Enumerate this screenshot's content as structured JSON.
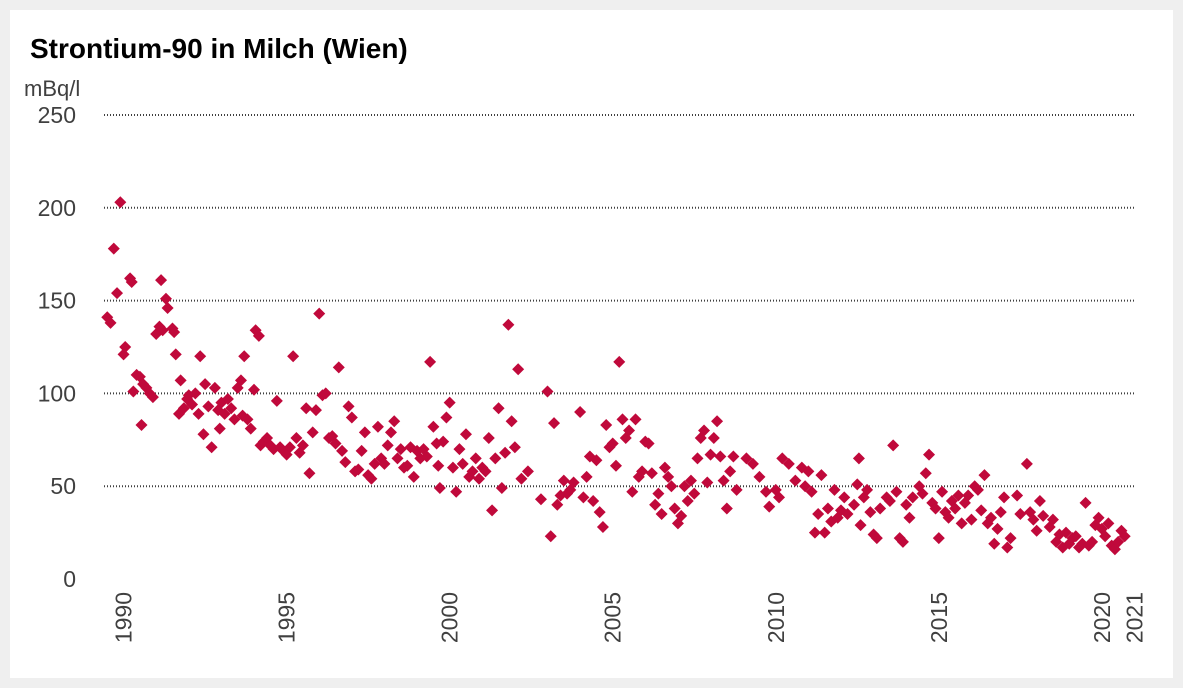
{
  "chart_data": {
    "type": "scatter",
    "title": "Strontium-90 in Milch (Wien)",
    "y_label": "mBq/l",
    "color": "#c0093b",
    "grid": true,
    "xlim": [
      1989.4,
      2021.2
    ],
    "xticks": [
      1990,
      1995,
      2000,
      2005,
      2010,
      2015,
      2020,
      2021
    ],
    "ylim": [
      0,
      250
    ],
    "yticks": [
      0,
      50,
      100,
      150,
      200,
      250
    ],
    "x": [
      1989.5,
      1989.6,
      1989.7,
      1989.8,
      1989.9,
      1990.0,
      1990.05,
      1990.2,
      1990.25,
      1990.3,
      1990.4,
      1990.5,
      1990.55,
      1990.6,
      1990.7,
      1990.8,
      1990.9,
      1991.0,
      1991.1,
      1991.15,
      1991.2,
      1991.3,
      1991.35,
      1991.5,
      1991.55,
      1991.6,
      1991.7,
      1991.75,
      1991.85,
      1991.95,
      1992.0,
      1992.1,
      1992.2,
      1992.3,
      1992.35,
      1992.45,
      1992.5,
      1992.6,
      1992.7,
      1992.8,
      1992.9,
      1992.95,
      1993.0,
      1993.1,
      1993.2,
      1993.3,
      1993.4,
      1993.5,
      1993.6,
      1993.65,
      1993.7,
      1993.8,
      1993.9,
      1994.0,
      1994.05,
      1994.15,
      1994.2,
      1994.3,
      1994.4,
      1994.5,
      1994.6,
      1994.7,
      1994.8,
      1994.9,
      1995.0,
      1995.1,
      1995.2,
      1995.3,
      1995.4,
      1995.5,
      1995.6,
      1995.7,
      1995.8,
      1995.9,
      1996.0,
      1996.1,
      1996.2,
      1996.3,
      1996.4,
      1996.5,
      1996.6,
      1996.7,
      1996.8,
      1996.9,
      1997.0,
      1997.1,
      1997.2,
      1997.3,
      1997.4,
      1997.5,
      1997.6,
      1997.7,
      1997.8,
      1997.9,
      1998.0,
      1998.1,
      1998.2,
      1998.3,
      1998.4,
      1998.5,
      1998.6,
      1998.7,
      1998.8,
      1998.9,
      1999.0,
      1999.1,
      1999.2,
      1999.3,
      1999.4,
      1999.5,
      1999.6,
      1999.65,
      1999.7,
      1999.8,
      1999.9,
      2000.0,
      2000.1,
      2000.2,
      2000.3,
      2000.4,
      2000.5,
      2000.6,
      2000.7,
      2000.8,
      2000.9,
      2001.0,
      2001.1,
      2001.2,
      2001.3,
      2001.4,
      2001.5,
      2001.6,
      2001.7,
      2001.8,
      2001.9,
      2002.0,
      2002.1,
      2002.2,
      2002.4,
      2002.8,
      2003.0,
      2003.1,
      2003.2,
      2003.3,
      2003.4,
      2003.5,
      2003.6,
      2003.7,
      2003.8,
      2004.0,
      2004.1,
      2004.2,
      2004.3,
      2004.4,
      2004.5,
      2004.6,
      2004.7,
      2004.8,
      2004.9,
      2005.0,
      2005.1,
      2005.2,
      2005.3,
      2005.4,
      2005.5,
      2005.6,
      2005.7,
      2005.8,
      2005.9,
      2006.0,
      2006.1,
      2006.2,
      2006.3,
      2006.4,
      2006.5,
      2006.6,
      2006.7,
      2006.8,
      2006.9,
      2007.0,
      2007.1,
      2007.2,
      2007.3,
      2007.4,
      2007.5,
      2007.6,
      2007.7,
      2007.8,
      2007.9,
      2008.0,
      2008.1,
      2008.2,
      2008.3,
      2008.4,
      2008.5,
      2008.6,
      2008.7,
      2008.8,
      2009.1,
      2009.3,
      2009.5,
      2009.7,
      2009.8,
      2010.0,
      2010.1,
      2010.2,
      2010.4,
      2010.6,
      2010.8,
      2010.9,
      2011.0,
      2011.1,
      2011.2,
      2011.3,
      2011.4,
      2011.5,
      2011.6,
      2011.7,
      2011.8,
      2011.9,
      2012.0,
      2012.1,
      2012.2,
      2012.4,
      2012.5,
      2012.55,
      2012.6,
      2012.7,
      2012.8,
      2012.9,
      2013.0,
      2013.1,
      2013.2,
      2013.4,
      2013.5,
      2013.6,
      2013.7,
      2013.8,
      2013.9,
      2014.0,
      2014.1,
      2014.2,
      2014.4,
      2014.5,
      2014.6,
      2014.7,
      2014.8,
      2014.9,
      2015.0,
      2015.1,
      2015.2,
      2015.3,
      2015.4,
      2015.5,
      2015.6,
      2015.7,
      2015.8,
      2015.9,
      2016.0,
      2016.1,
      2016.2,
      2016.3,
      2016.4,
      2016.5,
      2016.6,
      2016.7,
      2016.8,
      2016.9,
      2017.0,
      2017.1,
      2017.2,
      2017.4,
      2017.5,
      2017.7,
      2017.8,
      2017.9,
      2018.0,
      2018.1,
      2018.2,
      2018.4,
      2018.5,
      2018.6,
      2018.7,
      2018.8,
      2018.9,
      2019.0,
      2019.1,
      2019.2,
      2019.3,
      2019.4,
      2019.5,
      2019.6,
      2019.7,
      2019.8,
      2019.9,
      2020.0,
      2020.1,
      2020.2,
      2020.3,
      2020.4,
      2020.5,
      2020.6,
      2020.7
    ],
    "values": [
      141,
      138,
      178,
      154,
      203,
      121,
      125,
      162,
      160,
      101,
      110,
      109,
      83,
      105,
      103,
      100,
      98,
      132,
      136,
      161,
      134,
      151,
      146,
      135,
      133,
      121,
      89,
      107,
      92,
      97,
      99,
      94,
      100,
      89,
      120,
      78,
      105,
      93,
      71,
      103,
      91,
      81,
      95,
      89,
      97,
      92,
      86,
      103,
      107,
      88,
      120,
      86,
      81,
      102,
      134,
      131,
      72,
      74,
      76,
      72,
      70,
      96,
      71,
      69,
      67,
      71,
      120,
      76,
      68,
      72,
      92,
      57,
      79,
      91,
      143,
      99,
      100,
      76,
      77,
      73,
      114,
      69,
      63,
      93,
      87,
      58,
      59,
      69,
      79,
      56,
      54,
      62,
      82,
      65,
      62,
      72,
      79,
      85,
      65,
      70,
      60,
      61,
      71,
      55,
      69,
      65,
      70,
      66,
      117,
      82,
      73,
      61,
      49,
      74,
      87,
      95,
      60,
      47,
      70,
      62,
      78,
      55,
      58,
      65,
      54,
      60,
      58,
      76,
      37,
      65,
      92,
      49,
      68,
      137,
      85,
      71,
      113,
      54,
      58,
      43,
      101,
      23,
      84,
      40,
      45,
      53,
      46,
      48,
      52,
      90,
      44,
      55,
      66,
      42,
      64,
      36,
      28,
      83,
      71,
      73,
      61,
      117,
      86,
      76,
      80,
      47,
      86,
      55,
      58,
      74,
      73,
      57,
      40,
      46,
      35,
      60,
      55,
      50,
      38,
      30,
      34,
      50,
      42,
      53,
      46,
      65,
      76,
      80,
      52,
      67,
      76,
      85,
      66,
      53,
      38,
      58,
      66,
      48,
      65,
      62,
      55,
      47,
      39,
      48,
      44,
      65,
      62,
      53,
      60,
      50,
      58,
      47,
      25,
      35,
      56,
      25,
      38,
      31,
      48,
      33,
      37,
      44,
      35,
      40,
      51,
      65,
      29,
      44,
      48,
      36,
      24,
      22,
      38,
      44,
      42,
      72,
      47,
      22,
      20,
      40,
      33,
      44,
      50,
      46,
      57,
      67,
      41,
      38,
      22,
      47,
      36,
      33,
      42,
      38,
      45,
      30,
      41,
      45,
      32,
      50,
      48,
      37,
      56,
      30,
      33,
      19,
      27,
      36,
      44,
      17,
      22,
      45,
      35,
      62,
      36,
      32,
      26,
      42,
      34,
      28,
      32,
      20,
      24,
      17,
      25,
      19,
      22,
      23,
      17,
      19,
      41,
      18,
      20,
      29,
      33,
      27,
      23,
      30,
      18,
      16,
      20,
      26,
      23
    ]
  }
}
